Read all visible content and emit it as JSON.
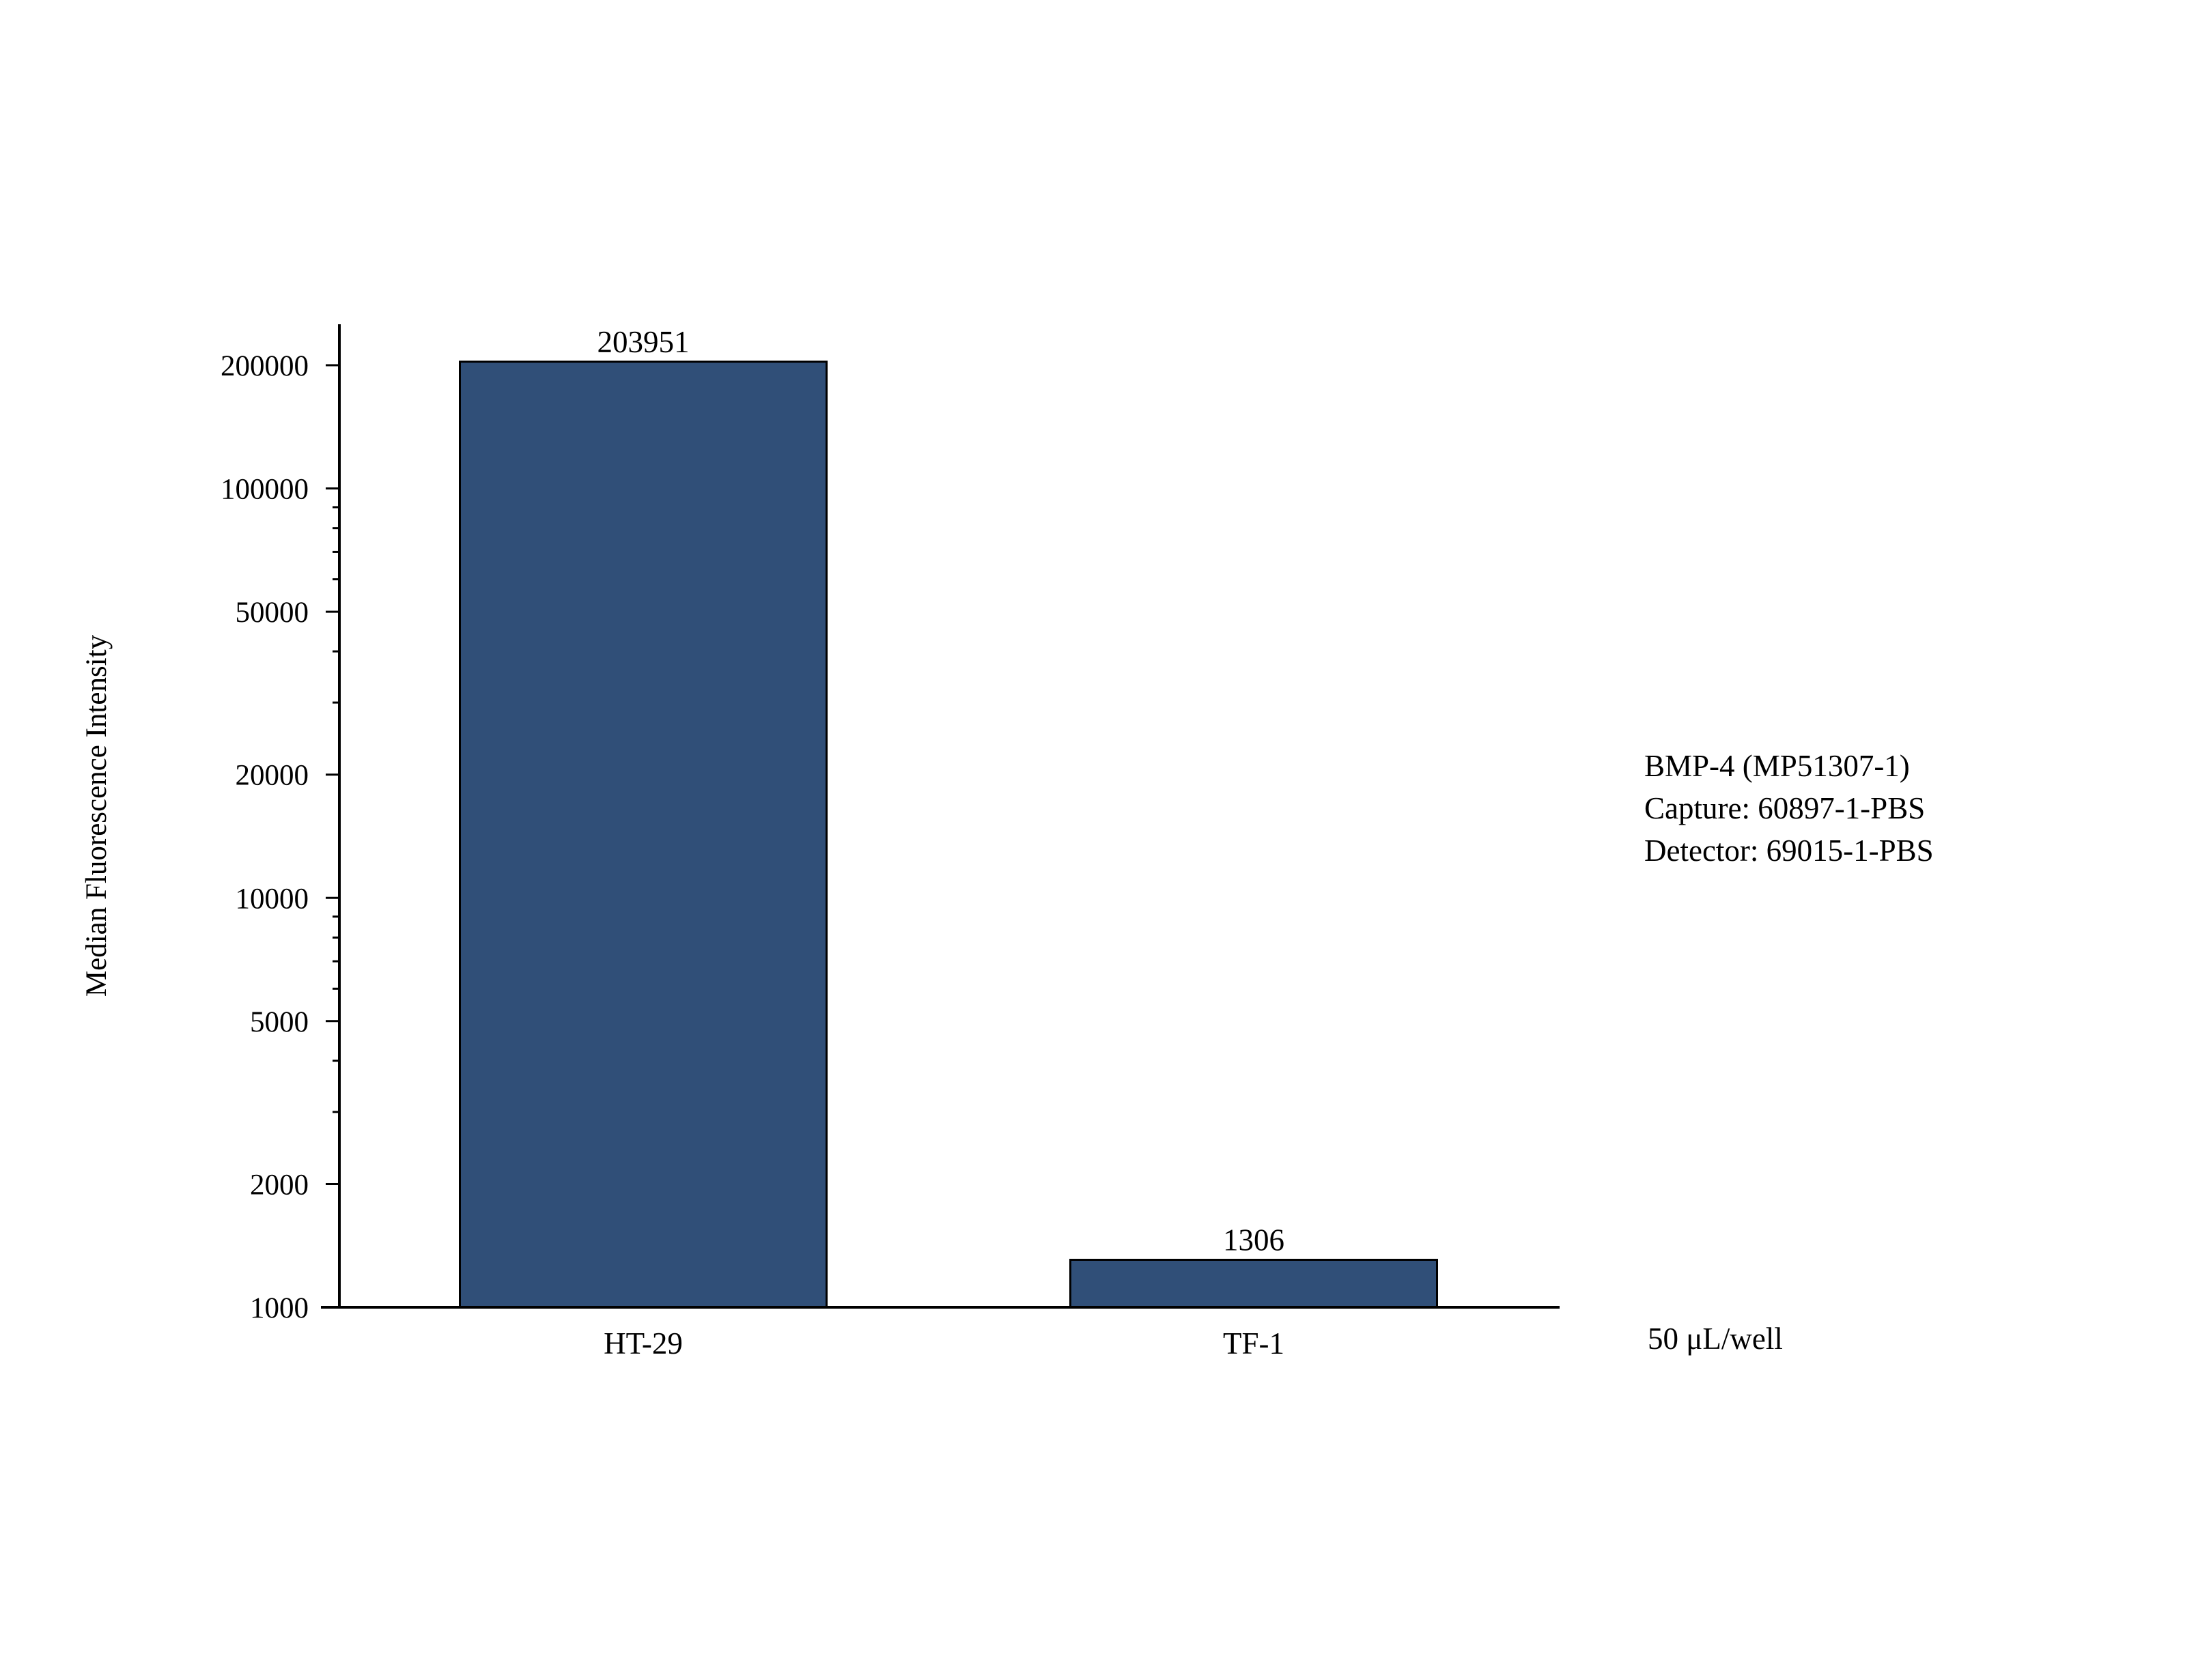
{
  "chart_data": {
    "type": "bar",
    "categories": [
      "HT-29",
      "TF-1"
    ],
    "values": [
      203951,
      1306
    ],
    "data_labels": [
      "203951",
      "1306"
    ],
    "ylabel": "Median Fluorescence Intensity",
    "xlabel": "",
    "yscale": "log",
    "ylim": [
      1000,
      250000
    ],
    "yticks": [
      1000,
      2000,
      5000,
      10000,
      20000,
      50000,
      100000,
      200000
    ],
    "ytick_labels": [
      "1000",
      "2000",
      "5000",
      "10000",
      "20000",
      "50000",
      "100000",
      "200000"
    ],
    "grid": false,
    "legend": false,
    "annotations": {
      "info_lines": [
        "BMP-4 (MP51307-1)",
        "Capture: 60897-1-PBS",
        "Detector: 69015-1-PBS"
      ],
      "volume": "50 μL/well"
    },
    "colors": {
      "bar": "#304f78",
      "bar_edge": "#000000",
      "axis": "#000000"
    }
  }
}
